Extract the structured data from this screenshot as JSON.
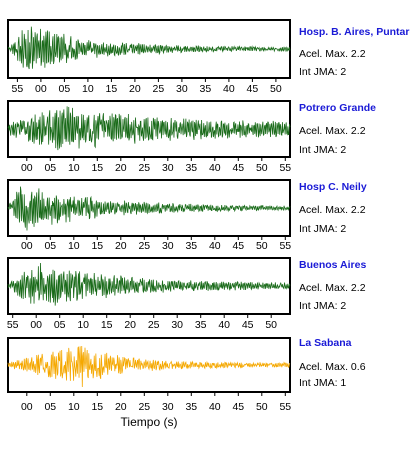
{
  "chart_data": {
    "type": "line",
    "xlabel": "Tiempo (s)",
    "panels": [
      {
        "station": "Hosp. B. Aires, Puntare",
        "acel_text": "Acel. Max. 2.2",
        "int_text": "Int JMA: 2",
        "color": "#1a6b1a",
        "tick_labels": [
          "55",
          "00",
          "05",
          "10",
          "15",
          "20",
          "25",
          "30",
          "35",
          "40",
          "45",
          "50"
        ],
        "tick_values": [
          0,
          5,
          10,
          15,
          20,
          25,
          30,
          35,
          40,
          45,
          50,
          55
        ],
        "xlim": [
          -2,
          58
        ],
        "envelope": {
          "peak_time": 1.5,
          "peak": 1.0,
          "decay": 0.075,
          "noise": 0.07
        }
      },
      {
        "station": "Potrero Grande",
        "acel_text": "Acel. Max. 2.2",
        "int_text": "Int JMA: 2",
        "color": "#1a6b1a",
        "tick_labels": [
          "00",
          "05",
          "10",
          "15",
          "20",
          "25",
          "30",
          "35",
          "40",
          "45",
          "50",
          "55"
        ],
        "tick_values": [
          0,
          5,
          10,
          15,
          20,
          25,
          30,
          35,
          40,
          45,
          50,
          55
        ],
        "xlim": [
          -4,
          56
        ],
        "envelope": {
          "peak_time": 6,
          "peak": 1.0,
          "decay": 0.045,
          "noise": 0.22
        }
      },
      {
        "station": "Hosp C. Neily",
        "acel_text": "Acel. Max. 2.2",
        "int_text": "Int JMA: 2",
        "color": "#1a6b1a",
        "tick_labels": [
          "00",
          "05",
          "10",
          "15",
          "20",
          "25",
          "30",
          "35",
          "40",
          "45",
          "50",
          "55"
        ],
        "tick_values": [
          0,
          5,
          10,
          15,
          20,
          25,
          30,
          35,
          40,
          45,
          50,
          55
        ],
        "xlim": [
          -4,
          56
        ],
        "envelope": {
          "peak_time": -2,
          "peak": 1.0,
          "decay": 0.06,
          "noise": 0.06
        }
      },
      {
        "station": "Buenos Aires",
        "acel_text": "Acel. Max. 2.2",
        "int_text": "Int JMA: 2",
        "color": "#1a6b1a",
        "tick_labels": [
          "55",
          "00",
          "05",
          "10",
          "15",
          "20",
          "25",
          "30",
          "35",
          "40",
          "45",
          "50"
        ],
        "tick_values": [
          0,
          5,
          10,
          15,
          20,
          25,
          30,
          35,
          40,
          45,
          50,
          55
        ],
        "xlim": [
          -1,
          59
        ],
        "envelope": {
          "peak_time": 5,
          "peak": 1.0,
          "decay": 0.06,
          "noise": 0.1
        }
      },
      {
        "station": "La Sabana",
        "acel_text": "Acel. Max. 0.6",
        "int_text": "Int JMA: 1",
        "color": "#f5a800",
        "tick_labels": [
          "00",
          "05",
          "10",
          "15",
          "20",
          "25",
          "30",
          "35",
          "40",
          "45",
          "50",
          "55"
        ],
        "tick_values": [
          0,
          5,
          10,
          15,
          20,
          25,
          30,
          35,
          40,
          45,
          50,
          55
        ],
        "xlim": [
          -4,
          56
        ],
        "envelope": {
          "peak_time": 11,
          "peak": 1.0,
          "decay": 0.12,
          "noise": 0.1
        }
      }
    ]
  }
}
